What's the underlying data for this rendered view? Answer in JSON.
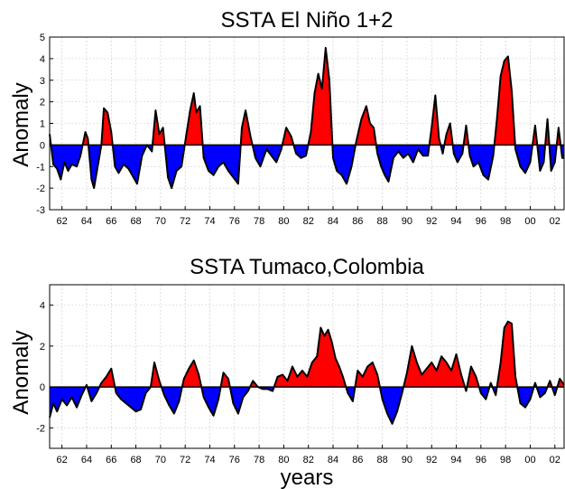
{
  "figure": {
    "xlabel": "years"
  },
  "chart_data": [
    {
      "type": "area",
      "title": "SSTA El Niño 1+2",
      "ylabel": "Anomaly",
      "xlabel": "",
      "xlim": [
        1961,
        2002.75
      ],
      "ylim": [
        -3,
        5
      ],
      "yticks": [
        -3,
        -2,
        -1,
        0,
        1,
        2,
        3,
        4,
        5
      ],
      "xticks": [
        "62",
        "64",
        "66",
        "68",
        "70",
        "72",
        "74",
        "76",
        "78",
        "80",
        "82",
        "84",
        "86",
        "88",
        "90",
        "92",
        "94",
        "96",
        "98",
        "00",
        "02"
      ],
      "grid": true,
      "fill_positive": "#ff0000",
      "fill_negative": "#0000ff",
      "line_color": "#000000",
      "series": [
        {
          "x": [
            1961.0,
            1961.3,
            1961.6,
            1961.9,
            1962.2,
            1962.5,
            1962.8,
            1963.2,
            1963.5,
            1963.9,
            1964.1,
            1964.4,
            1964.6,
            1964.9,
            1965.2,
            1965.4,
            1965.7,
            1966.0,
            1966.3,
            1966.6,
            1967.0,
            1967.4,
            1967.8,
            1968.1,
            1968.5,
            1968.9,
            1969.3,
            1969.6,
            1969.9,
            1970.2,
            1970.6,
            1970.9,
            1971.3,
            1971.7,
            1972.1,
            1972.4,
            1972.7,
            1972.9,
            1973.2,
            1973.5,
            1973.9,
            1974.3,
            1974.7,
            1975.1,
            1975.5,
            1975.9,
            1976.3,
            1976.6,
            1976.9,
            1977.3,
            1977.7,
            1978.1,
            1978.6,
            1979.0,
            1979.4,
            1979.8,
            1980.2,
            1980.6,
            1981.0,
            1981.4,
            1981.8,
            1982.2,
            1982.5,
            1982.8,
            1983.1,
            1983.4,
            1983.7,
            1984.0,
            1984.3,
            1984.7,
            1985.1,
            1985.5,
            1985.9,
            1986.3,
            1986.7,
            1987.0,
            1987.3,
            1987.6,
            1987.9,
            1988.2,
            1988.5,
            1988.9,
            1989.3,
            1989.7,
            1990.1,
            1990.5,
            1990.9,
            1991.3,
            1991.7,
            1992.0,
            1992.3,
            1992.6,
            1992.9,
            1993.2,
            1993.5,
            1993.8,
            1994.1,
            1994.5,
            1994.8,
            1995.1,
            1995.4,
            1995.8,
            1996.2,
            1996.6,
            1997.0,
            1997.3,
            1997.6,
            1997.9,
            1998.2,
            1998.5,
            1998.8,
            1999.2,
            1999.6,
            2000.0,
            2000.4,
            2000.8,
            2001.1,
            2001.4,
            2001.7,
            2002.0,
            2002.3,
            2002.6,
            2002.75
          ],
          "y": [
            0.5,
            -0.9,
            -1.1,
            -1.6,
            -0.8,
            -1.2,
            -0.9,
            -1.0,
            -0.5,
            0.6,
            0.3,
            -1.6,
            -2.0,
            -1.0,
            0.0,
            1.7,
            1.5,
            0.6,
            -1.0,
            -1.3,
            -0.9,
            -1.1,
            -1.5,
            -1.8,
            -0.5,
            0.0,
            -0.3,
            1.6,
            0.5,
            0.8,
            -1.5,
            -2.0,
            -1.2,
            -1.0,
            0.5,
            1.6,
            2.4,
            1.5,
            1.8,
            -0.6,
            -1.2,
            -1.4,
            -1.0,
            -0.8,
            -1.2,
            -1.5,
            -1.8,
            0.8,
            1.6,
            0.4,
            -0.6,
            -1.0,
            -0.2,
            -0.5,
            -0.8,
            -0.2,
            0.8,
            0.4,
            -0.4,
            -0.6,
            -0.5,
            0.6,
            2.4,
            3.3,
            2.6,
            4.5,
            3.0,
            -0.6,
            -1.2,
            -1.4,
            -1.8,
            -1.0,
            0.2,
            1.2,
            1.8,
            1.0,
            0.8,
            -0.4,
            -1.0,
            -1.4,
            -1.7,
            -0.6,
            -0.3,
            -0.6,
            -0.4,
            -0.8,
            -0.2,
            -0.5,
            -0.5,
            0.8,
            2.3,
            0.3,
            -0.4,
            0.5,
            1.0,
            -0.4,
            -0.8,
            -0.4,
            0.9,
            -0.5,
            -1.0,
            -0.8,
            -1.4,
            -1.6,
            -0.5,
            1.2,
            3.2,
            3.9,
            4.1,
            2.5,
            -0.2,
            -1.0,
            -1.3,
            -0.8,
            0.9,
            -1.2,
            -0.8,
            1.2,
            -1.2,
            -0.8,
            0.8,
            -0.6,
            -0.6
          ]
        }
      ]
    },
    {
      "type": "area",
      "title": "SSTA Tumaco,Colombia",
      "ylabel": "Anomaly",
      "xlabel": "years",
      "xlim": [
        1961,
        2002.75
      ],
      "ylim": [
        -3,
        5
      ],
      "yticks": [
        -2,
        0,
        2,
        4
      ],
      "xticks": [
        "62",
        "64",
        "66",
        "68",
        "70",
        "72",
        "74",
        "76",
        "78",
        "80",
        "82",
        "84",
        "86",
        "88",
        "90",
        "92",
        "94",
        "96",
        "98",
        "00",
        "02"
      ],
      "grid": true,
      "fill_positive": "#ff0000",
      "fill_negative": "#0000ff",
      "line_color": "#000000",
      "series": [
        {
          "x": [
            1961.0,
            1961.3,
            1961.6,
            1962.0,
            1962.4,
            1962.8,
            1963.2,
            1963.6,
            1964.0,
            1964.4,
            1964.8,
            1965.2,
            1965.6,
            1966.0,
            1966.4,
            1966.8,
            1967.2,
            1967.6,
            1968.0,
            1968.4,
            1968.8,
            1969.2,
            1969.5,
            1969.9,
            1970.3,
            1970.7,
            1971.1,
            1971.5,
            1971.9,
            1972.3,
            1972.7,
            1973.1,
            1973.5,
            1973.9,
            1974.3,
            1974.7,
            1975.1,
            1975.5,
            1975.9,
            1976.3,
            1976.7,
            1977.1,
            1977.5,
            1977.9,
            1978.3,
            1978.7,
            1979.1,
            1979.5,
            1979.9,
            1980.3,
            1980.7,
            1981.1,
            1981.5,
            1981.9,
            1982.3,
            1982.7,
            1983.0,
            1983.3,
            1983.6,
            1983.9,
            1984.2,
            1984.5,
            1984.8,
            1985.2,
            1985.6,
            1986.0,
            1986.4,
            1986.8,
            1987.2,
            1987.6,
            1988.0,
            1988.4,
            1988.8,
            1989.2,
            1989.6,
            1990.0,
            1990.4,
            1990.8,
            1991.2,
            1991.6,
            1992.0,
            1992.4,
            1992.8,
            1993.2,
            1993.6,
            1994.0,
            1994.4,
            1994.8,
            1995.2,
            1995.6,
            1996.0,
            1996.4,
            1996.8,
            1997.2,
            1997.6,
            1997.9,
            1998.2,
            1998.5,
            1998.8,
            1999.2,
            1999.6,
            2000.0,
            2000.4,
            2000.8,
            2001.2,
            2001.6,
            2002.0,
            2002.4,
            2002.75
          ],
          "y": [
            -1.5,
            -0.8,
            -1.2,
            -0.6,
            -0.9,
            -0.5,
            -1.0,
            -0.4,
            0.1,
            -0.7,
            -0.3,
            0.2,
            0.5,
            0.9,
            -0.3,
            -0.6,
            -0.8,
            -1.0,
            -1.2,
            -1.1,
            -0.3,
            0.0,
            1.2,
            0.3,
            -0.4,
            -0.9,
            -1.3,
            -0.7,
            0.4,
            0.9,
            1.3,
            0.6,
            -0.5,
            -1.0,
            -1.4,
            -0.6,
            0.7,
            0.4,
            -0.8,
            -1.3,
            -0.5,
            -0.2,
            0.3,
            0.0,
            -0.1,
            -0.1,
            -0.2,
            0.5,
            0.6,
            0.3,
            1.0,
            0.5,
            0.8,
            0.5,
            1.2,
            1.5,
            2.9,
            2.5,
            2.8,
            2.2,
            1.4,
            1.0,
            0.5,
            -0.3,
            -0.7,
            0.8,
            0.5,
            1.0,
            1.2,
            0.6,
            -0.6,
            -1.3,
            -1.8,
            -1.2,
            -0.3,
            0.7,
            2.0,
            1.2,
            0.6,
            0.9,
            1.2,
            0.8,
            1.5,
            1.2,
            0.8,
            1.6,
            0.6,
            -0.2,
            1.0,
            0.5,
            -0.3,
            -0.6,
            0.2,
            -0.4,
            1.2,
            2.9,
            3.2,
            3.1,
            0.5,
            -0.8,
            -1.0,
            -0.6,
            0.2,
            -0.5,
            -0.3,
            0.3,
            -0.4,
            0.4,
            0.1
          ]
        }
      ]
    }
  ]
}
